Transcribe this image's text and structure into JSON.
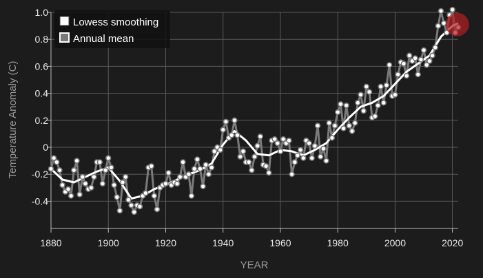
{
  "chart_data": {
    "type": "line",
    "title": "",
    "xlabel": "YEAR",
    "ylabel": "Temperature Anomaly (C)",
    "xlim": [
      1880,
      2022
    ],
    "ylim": [
      -0.55,
      1.02
    ],
    "grid": true,
    "legend_position": "top-left",
    "x_ticks": [
      1880,
      1900,
      1920,
      1940,
      1960,
      1980,
      2000,
      2020
    ],
    "x_tick_labels": [
      "1880",
      "1900",
      "1920",
      "1940",
      "1960",
      "1980",
      "2000",
      "2020"
    ],
    "y_ticks": [
      -0.4,
      -0.2,
      0,
      0.2,
      0.4,
      0.6,
      0.8,
      1.0
    ],
    "y_tick_labels": [
      "-0.4",
      "-0.2",
      "0",
      "0.2",
      "0.4",
      "0.6",
      "0.8",
      "1.0"
    ],
    "series": [
      {
        "name": "Lowess smoothing",
        "color": "#ffffff",
        "x": [
          1880,
          1884,
          1888,
          1892,
          1896,
          1900,
          1904,
          1908,
          1912,
          1916,
          1920,
          1924,
          1928,
          1932,
          1936,
          1940,
          1944,
          1948,
          1952,
          1956,
          1960,
          1964,
          1968,
          1972,
          1976,
          1980,
          1984,
          1988,
          1992,
          1996,
          2000,
          2004,
          2008,
          2012,
          2016,
          2020,
          2022
        ],
        "values": [
          -0.16,
          -0.24,
          -0.26,
          -0.22,
          -0.18,
          -0.15,
          -0.25,
          -0.38,
          -0.36,
          -0.31,
          -0.28,
          -0.24,
          -0.2,
          -0.17,
          -0.12,
          0.02,
          0.12,
          0.05,
          -0.05,
          -0.06,
          -0.02,
          -0.03,
          -0.06,
          -0.02,
          0.03,
          0.13,
          0.22,
          0.3,
          0.33,
          0.38,
          0.47,
          0.56,
          0.62,
          0.68,
          0.82,
          0.9,
          0.92
        ]
      },
      {
        "name": "Annual mean",
        "color": "#7a7a7a",
        "x": [
          1880,
          1881,
          1882,
          1883,
          1884,
          1885,
          1886,
          1887,
          1888,
          1889,
          1890,
          1891,
          1892,
          1893,
          1894,
          1895,
          1896,
          1897,
          1898,
          1899,
          1900,
          1901,
          1902,
          1903,
          1904,
          1905,
          1906,
          1907,
          1908,
          1909,
          1910,
          1911,
          1912,
          1913,
          1914,
          1915,
          1916,
          1917,
          1918,
          1919,
          1920,
          1921,
          1922,
          1923,
          1924,
          1925,
          1926,
          1927,
          1928,
          1929,
          1930,
          1931,
          1932,
          1933,
          1934,
          1935,
          1936,
          1937,
          1938,
          1939,
          1940,
          1941,
          1942,
          1943,
          1944,
          1945,
          1946,
          1947,
          1948,
          1949,
          1950,
          1951,
          1952,
          1953,
          1954,
          1955,
          1956,
          1957,
          1958,
          1959,
          1960,
          1961,
          1962,
          1963,
          1964,
          1965,
          1966,
          1967,
          1968,
          1969,
          1970,
          1971,
          1972,
          1973,
          1974,
          1975,
          1976,
          1977,
          1978,
          1979,
          1980,
          1981,
          1982,
          1983,
          1984,
          1985,
          1986,
          1987,
          1988,
          1989,
          1990,
          1991,
          1992,
          1993,
          1994,
          1995,
          1996,
          1997,
          1998,
          1999,
          2000,
          2001,
          2002,
          2003,
          2004,
          2005,
          2006,
          2007,
          2008,
          2009,
          2010,
          2011,
          2012,
          2013,
          2014,
          2015,
          2016,
          2017,
          2018,
          2019,
          2020,
          2021,
          2022
        ],
        "values": [
          -0.16,
          -0.08,
          -0.11,
          -0.17,
          -0.28,
          -0.33,
          -0.31,
          -0.36,
          -0.17,
          -0.1,
          -0.35,
          -0.22,
          -0.27,
          -0.31,
          -0.3,
          -0.22,
          -0.11,
          -0.11,
          -0.27,
          -0.17,
          -0.08,
          -0.15,
          -0.28,
          -0.37,
          -0.47,
          -0.26,
          -0.22,
          -0.39,
          -0.43,
          -0.48,
          -0.43,
          -0.44,
          -0.36,
          -0.34,
          -0.15,
          -0.14,
          -0.36,
          -0.46,
          -0.3,
          -0.28,
          -0.27,
          -0.19,
          -0.28,
          -0.26,
          -0.27,
          -0.22,
          -0.11,
          -0.22,
          -0.2,
          -0.36,
          -0.16,
          -0.09,
          -0.16,
          -0.29,
          -0.13,
          -0.2,
          -0.15,
          -0.03,
          -0.0,
          -0.02,
          0.13,
          0.19,
          0.07,
          0.09,
          0.2,
          0.09,
          -0.07,
          -0.03,
          -0.11,
          -0.11,
          -0.17,
          -0.07,
          0.01,
          0.08,
          -0.13,
          -0.14,
          -0.19,
          0.05,
          0.06,
          0.03,
          -0.03,
          0.06,
          0.03,
          0.05,
          -0.2,
          -0.11,
          -0.06,
          -0.02,
          -0.08,
          0.05,
          0.03,
          -0.08,
          0.01,
          0.16,
          -0.07,
          -0.01,
          -0.1,
          0.18,
          0.07,
          0.16,
          0.26,
          0.32,
          0.14,
          0.31,
          0.16,
          0.12,
          0.18,
          0.33,
          0.39,
          0.27,
          0.45,
          0.41,
          0.22,
          0.23,
          0.31,
          0.45,
          0.33,
          0.46,
          0.61,
          0.38,
          0.39,
          0.54,
          0.63,
          0.62,
          0.53,
          0.68,
          0.64,
          0.66,
          0.54,
          0.65,
          0.72,
          0.61,
          0.64,
          0.68,
          0.74,
          0.9,
          1.01,
          0.92,
          0.85,
          0.98,
          1.02,
          0.85,
          0.89
        ]
      }
    ],
    "highlight": {
      "x": 2020,
      "y": 0.91,
      "color": "#b21e24"
    }
  },
  "legend": [
    {
      "label": "Lowess smoothing",
      "swatch": "#ffffff"
    },
    {
      "label": "Annual mean",
      "swatch": "#7a7a7a"
    }
  ]
}
